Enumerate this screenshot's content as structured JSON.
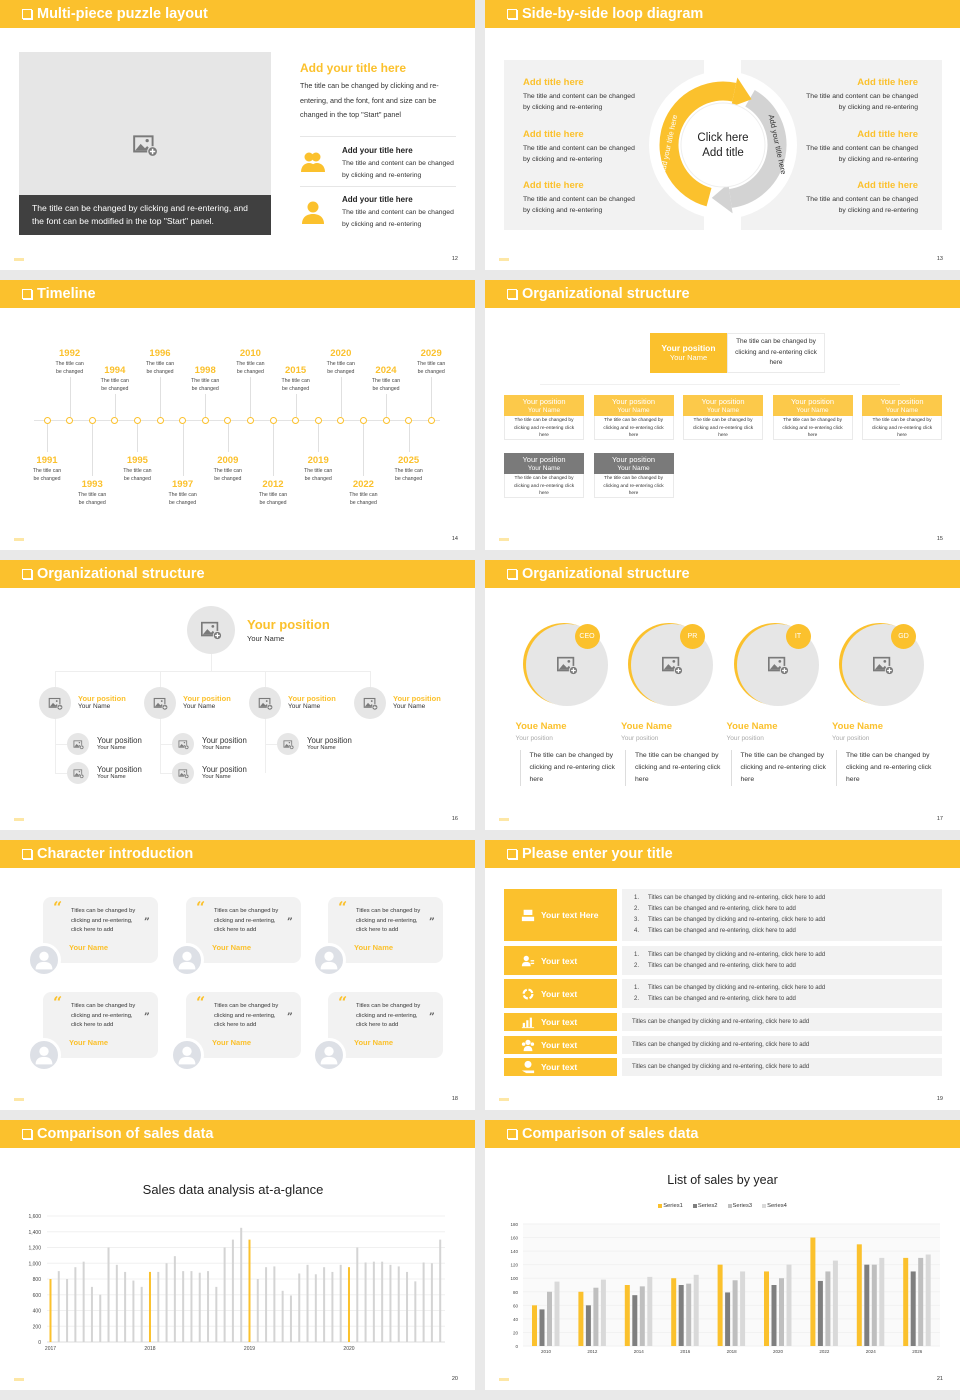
{
  "colors": {
    "accent": "#fbc12d",
    "dark": "#404040",
    "panel": "#f2f2f2",
    "placeholder": "#e6e6e6"
  },
  "slides": [
    {
      "title": "Multi-piece puzzle layout",
      "page": "12",
      "caption": "The title can be changed by clicking and re-entering, and the font can be modified in the top \"Start\" panel.",
      "heading": "Add your title here",
      "body": "The title can be changed by clicking and re-entering, and the font, font and size can be changed in the top \"Start\" panel",
      "items": [
        {
          "icon": "users-icon",
          "title": "Add your title here",
          "text": "The title and content can be changed by clicking and re-entering"
        },
        {
          "icon": "user-icon",
          "title": "Add your title here",
          "text": "The title and content can be changed by clicking and re-entering"
        }
      ]
    },
    {
      "title": "Side-by-side loop diagram",
      "page": "13",
      "center": [
        "Click here",
        "Add title"
      ],
      "arc_left": "Add your title here",
      "arc_right": "Add your title here",
      "left": [
        {
          "title": "Add title here",
          "text": "The title and content can be changed by clicking and re-entering"
        },
        {
          "title": "Add title here",
          "text": "The title and content can be changed by clicking and re-entering"
        },
        {
          "title": "Add title here",
          "text": "The title and content can be changed by clicking and re-entering"
        }
      ],
      "right": [
        {
          "title": "Add title here",
          "text": "The title and content can be changed by clicking and re-entering"
        },
        {
          "title": "Add title here",
          "text": "The title and content can be changed by clicking and re-entering"
        },
        {
          "title": "Add title here",
          "text": "The title and content can be changed by clicking and re-entering"
        }
      ]
    },
    {
      "title": "Timeline",
      "page": "14",
      "events": [
        {
          "year": "1991",
          "text": "The title can be changed"
        },
        {
          "year": "1992",
          "text": "The title can be changed"
        },
        {
          "year": "1993",
          "text": "The title can be changed"
        },
        {
          "year": "1994",
          "text": "The title can be changed"
        },
        {
          "year": "1995",
          "text": "The title can be changed"
        },
        {
          "year": "1996",
          "text": "The title can be changed"
        },
        {
          "year": "1997",
          "text": "The title can be changed"
        },
        {
          "year": "1998",
          "text": "The title can be changed"
        },
        {
          "year": "2009",
          "text": "The title can be changed"
        },
        {
          "year": "2010",
          "text": "The title can be changed"
        },
        {
          "year": "2012",
          "text": "The title can be changed"
        },
        {
          "year": "2015",
          "text": "The title can be changed"
        },
        {
          "year": "2019",
          "text": "The title can be changed"
        },
        {
          "year": "2020",
          "text": "The title can be changed"
        },
        {
          "year": "2022",
          "text": "The title can be changed"
        },
        {
          "year": "2024",
          "text": "The title can be changed"
        },
        {
          "year": "2025",
          "text": "The title can be changed"
        },
        {
          "year": "2029",
          "text": "The title can be changed"
        }
      ]
    },
    {
      "title": "Organizational structure",
      "page": "15",
      "top": {
        "position": "Your position",
        "name": "Your Name",
        "desc": "The title can be changed by clicking and re-entering click here"
      },
      "row1": [
        {
          "position": "Your position",
          "name": "Your Name",
          "desc": "The title can be changed by clicking and re-entering click here"
        },
        {
          "position": "Your position",
          "name": "Your Name",
          "desc": "The title can be changed by clicking and re-entering click here"
        },
        {
          "position": "Your position",
          "name": "Your Name",
          "desc": "The title can be changed by clicking and re-entering click here"
        },
        {
          "position": "Your position",
          "name": "Your Name",
          "desc": "The title can be changed by clicking and re-entering click here"
        },
        {
          "position": "Your position",
          "name": "Your Name",
          "desc": "The title can be changed by clicking and re-entering click here"
        }
      ],
      "row2": [
        {
          "position": "Your position",
          "name": "Your Name",
          "desc": "The title can be changed by clicking and re-entering click here"
        },
        {
          "position": "Your position",
          "name": "Your Name",
          "desc": "The title can be changed by clicking and re-entering click here"
        }
      ]
    },
    {
      "title": "Organizational structure",
      "page": "16",
      "top": {
        "position": "Your position",
        "name": "Your Name"
      },
      "level2": [
        {
          "position": "Your position",
          "name": "Your Name",
          "subs": [
            {
              "position": "Your position",
              "name": "Your Name"
            },
            {
              "position": "Your position",
              "name": "Your Name"
            }
          ]
        },
        {
          "position": "Your position",
          "name": "Your Name",
          "subs": [
            {
              "position": "Your position",
              "name": "Your Name"
            },
            {
              "position": "Your position",
              "name": "Your Name"
            }
          ]
        },
        {
          "position": "Your position",
          "name": "Your Name",
          "subs": [
            {
              "position": "Your position",
              "name": "Your Name"
            }
          ]
        },
        {
          "position": "Your position",
          "name": "Your Name",
          "subs": []
        }
      ]
    },
    {
      "title": "Organizational structure",
      "page": "17",
      "members": [
        {
          "badge": "CEO",
          "name": "Youe Name",
          "position": "Your position",
          "text": "The title can be changed by clicking and re-entering click here"
        },
        {
          "badge": "PR",
          "name": "Youe Name",
          "position": "Your position",
          "text": "The title can be changed by clicking and re-entering click here"
        },
        {
          "badge": "IT",
          "name": "Youe Name",
          "position": "Your position",
          "text": "The title can be changed by clicking and re-entering click here"
        },
        {
          "badge": "GD",
          "name": "Youe Name",
          "position": "Your position",
          "text": "The title can be changed by clicking and re-entering click here"
        }
      ]
    },
    {
      "title": "Character introduction",
      "page": "18",
      "open_quote": "“",
      "close_quote": "”",
      "cards": [
        {
          "quote": "Titles can be changed by clicking and re-entering, click here to add",
          "name": "Your Name"
        },
        {
          "quote": "Titles can be changed by clicking and re-entering, click here to add",
          "name": "Your Name"
        },
        {
          "quote": "Titles can be changed by clicking and re-entering, click here to add",
          "name": "Your Name"
        },
        {
          "quote": "Titles can be changed by clicking and re-entering, click here to add",
          "name": "Your Name"
        },
        {
          "quote": "Titles can be changed by clicking and re-entering, click here to add",
          "name": "Your Name"
        },
        {
          "quote": "Titles can be changed by clicking and re-entering, click here to add",
          "name": "Your Name"
        }
      ]
    },
    {
      "title": "Please enter your title",
      "page": "19",
      "rows": [
        {
          "icon": "building-icon",
          "label": "Your text Here",
          "numbered": true,
          "items": [
            "Titles can be changed by clicking and re-entering, click here to add",
            "Titles can be changed and re-entering, click here to add",
            "Titles can be changed by clicking and re-entering, click here to add",
            "Titles can be changed and re-entering, click here to add"
          ]
        },
        {
          "icon": "user-card-icon",
          "label": "Your text",
          "numbered": true,
          "items": [
            "Titles can be changed by clicking and re-entering, click here to add",
            "Titles can be changed and re-entering, click here to add"
          ]
        },
        {
          "icon": "recycle-icon",
          "label": "Your text",
          "numbered": true,
          "items": [
            "Titles can be changed by clicking and re-entering, click here to add",
            "Titles can be changed and re-entering, click here to add"
          ]
        },
        {
          "icon": "bar-chart-icon",
          "label": "Your text",
          "numbered": false,
          "items": [
            "Titles can be changed by clicking and re-entering, click here to add"
          ]
        },
        {
          "icon": "team-icon",
          "label": "Your text",
          "numbered": false,
          "items": [
            "Titles can be changed by clicking and re-entering, click here to add"
          ]
        },
        {
          "icon": "hand-money-icon",
          "label": "Your text",
          "numbered": false,
          "items": [
            "Titles can be changed by clicking and re-entering, click here to add"
          ]
        }
      ]
    },
    {
      "title": "Comparison of sales data",
      "page": "20"
    },
    {
      "title": "Comparison of sales data",
      "page": "21"
    }
  ],
  "chart_data": [
    {
      "type": "bar",
      "title": "Sales data analysis at-a-glance",
      "xlabel": "",
      "ylabel": "",
      "ylim": [
        0,
        1600
      ],
      "yticks": [
        "0",
        "200",
        "400",
        "600",
        "800",
        "1,000",
        "1,200",
        "1,400",
        "1,600"
      ],
      "grid": true,
      "x_tick_labels": [
        {
          "index": 0,
          "label": "2017"
        },
        {
          "index": 12,
          "label": "2018"
        },
        {
          "index": 24,
          "label": "2019"
        },
        {
          "index": 36,
          "label": "2020"
        }
      ],
      "highlight_indices": [
        0,
        12,
        24,
        36
      ],
      "highlight_color": "#fbc12d",
      "bar_color": "#d4d4d4",
      "values": [
        800,
        900,
        800,
        950,
        1020,
        700,
        600,
        1200,
        980,
        890,
        780,
        700,
        890,
        890,
        1000,
        1090,
        900,
        900,
        880,
        900,
        700,
        1200,
        1300,
        1450,
        1300,
        800,
        950,
        960,
        650,
        590,
        870,
        980,
        860,
        950,
        890,
        980,
        950,
        1200,
        1010,
        1020,
        1020,
        980,
        960,
        890,
        770,
        1010,
        1000,
        1300
      ]
    },
    {
      "type": "bar",
      "title": "List of sales by year",
      "xlabel": "",
      "ylabel": "",
      "ylim": [
        0,
        180
      ],
      "yticks": [
        "0",
        "20",
        "40",
        "60",
        "80",
        "100",
        "120",
        "140",
        "160",
        "180"
      ],
      "grid": true,
      "legend": "top",
      "categories": [
        "2010",
        "2012",
        "2014",
        "2016",
        "2018",
        "2020",
        "2022",
        "2024",
        "2026"
      ],
      "series": [
        {
          "name": "Series1",
          "color": "#fbc12d",
          "values": [
            60,
            80,
            90,
            100,
            120,
            110,
            160,
            150,
            130
          ]
        },
        {
          "name": "Series2",
          "color": "#7f7f7f",
          "values": [
            54,
            60,
            75,
            90,
            79,
            90,
            96,
            120,
            110
          ]
        },
        {
          "name": "Series3",
          "color": "#bfbfbf",
          "values": [
            80,
            86,
            88,
            92,
            97,
            100,
            110,
            120,
            130
          ]
        },
        {
          "name": "Series4",
          "color": "#d9d9d9",
          "values": [
            95,
            98,
            102,
            105,
            110,
            120,
            126,
            130,
            135
          ]
        }
      ]
    }
  ]
}
